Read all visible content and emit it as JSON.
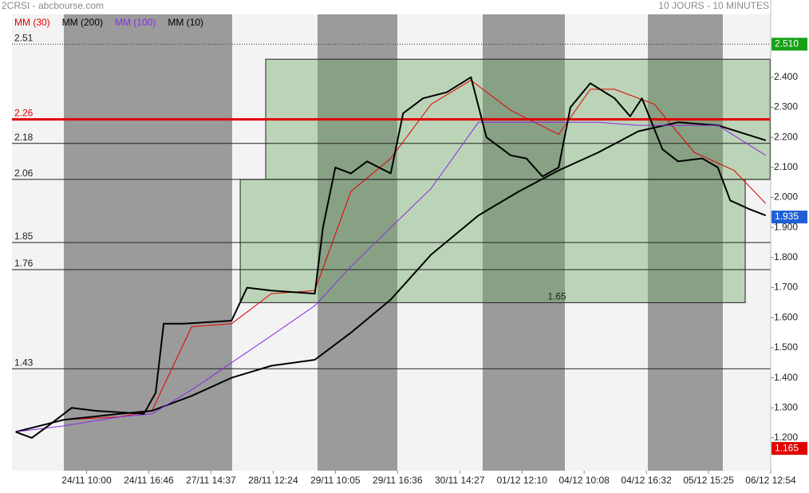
{
  "chart_data": {
    "type": "line",
    "title": "2CRSI - abcbourse.com",
    "subtitle": "10 JOURS - 10 MINUTES",
    "xlim": [
      -2,
      120
    ],
    "ylim": [
      1.091,
      2.657
    ],
    "xticks": [
      {
        "value": 10,
        "label": "24/11 10:00"
      },
      {
        "value": 20,
        "label": "24/11 16:46"
      },
      {
        "value": 30,
        "label": "27/11 14:37"
      },
      {
        "value": 40,
        "label": "28/11 12:24"
      },
      {
        "value": 50,
        "label": "29/11 10:05"
      },
      {
        "value": 60,
        "label": "29/11 16:36"
      },
      {
        "value": 70,
        "label": "30/11 14:27"
      },
      {
        "value": 80,
        "label": "01/12 12:10"
      },
      {
        "value": 90,
        "label": "04/12 10:08"
      },
      {
        "value": 100,
        "label": "04/12 16:32"
      },
      {
        "value": 110,
        "label": "05/12 15:25"
      },
      {
        "value": 120,
        "label": "06/12 12:54"
      }
    ],
    "yticks": [
      {
        "value": 1.2,
        "label": "1.200"
      },
      {
        "value": 1.3,
        "label": "1.300"
      },
      {
        "value": 1.4,
        "label": "1.400"
      },
      {
        "value": 1.5,
        "label": "1.500"
      },
      {
        "value": 1.6,
        "label": "1.600"
      },
      {
        "value": 1.7,
        "label": "1.700"
      },
      {
        "value": 1.8,
        "label": "1.800"
      },
      {
        "value": 1.9,
        "label": "1.900"
      },
      {
        "value": 2.0,
        "label": "2.000"
      },
      {
        "value": 2.1,
        "label": "2.100"
      },
      {
        "value": 2.2,
        "label": "2.200"
      },
      {
        "value": 2.3,
        "label": "2.300"
      },
      {
        "value": 2.4,
        "label": "2.400"
      }
    ],
    "zones": [
      {
        "xlim": [
          38.8,
          119.9
        ],
        "ylim": [
          2.06,
          2.46
        ]
      },
      {
        "xlim": [
          34.7,
          115.9
        ],
        "ylim": [
          1.65,
          2.06
        ]
      }
    ],
    "levels": [
      {
        "value": 2.51,
        "style": "dotted",
        "color": "#333333"
      },
      {
        "value": 2.26,
        "style": "thick",
        "color": "#e00000"
      },
      {
        "value": 2.18,
        "style": "solid",
        "color": "#222222"
      },
      {
        "value": 2.06,
        "style": "solid",
        "color": "#222222"
      },
      {
        "value": 1.85,
        "style": "solid",
        "color": "#222222"
      },
      {
        "value": 1.76,
        "style": "solid",
        "color": "#222222"
      },
      {
        "value": 1.65,
        "style": "zone",
        "color": "#222222"
      },
      {
        "value": 1.43,
        "style": "solid",
        "color": "#222222"
      }
    ],
    "price_markers": [
      {
        "value": 2.51,
        "label": "2.510",
        "color": "#16a016"
      },
      {
        "value": 1.935,
        "label": "1.935",
        "color": "#1f5fd6"
      },
      {
        "value": 1.165,
        "label": "1.165",
        "color": "#e00000"
      }
    ],
    "series": [
      {
        "name": "MM (30)",
        "color": "#e00000",
        "width": 1,
        "x": [
          -1.4,
          6.3,
          15.3,
          20.5,
          26.9,
          33.3,
          39.7,
          46.7,
          52.5,
          58.9,
          65.4,
          71.8,
          78.2,
          85.9,
          91.0,
          94.9,
          101.3,
          107.7,
          114.1,
          119.2
        ],
        "values": [
          1.22,
          1.26,
          1.27,
          1.29,
          1.57,
          1.58,
          1.68,
          1.69,
          2.02,
          2.13,
          2.31,
          2.39,
          2.29,
          2.21,
          2.36,
          2.36,
          2.31,
          2.15,
          2.09,
          1.98
        ]
      },
      {
        "name": "MM (200)",
        "color": "#000000",
        "width": 2,
        "x": [
          -1.4,
          6.3,
          15.3,
          20.5,
          26.9,
          33.3,
          39.7,
          46.7,
          52.5,
          58.9,
          65.4,
          73.0,
          79.5,
          85.9,
          92.3,
          98.7,
          105.1,
          111.5,
          119.2
        ],
        "values": [
          1.22,
          1.26,
          1.28,
          1.29,
          1.34,
          1.4,
          1.44,
          1.46,
          1.55,
          1.66,
          1.81,
          1.94,
          2.02,
          2.09,
          2.15,
          2.22,
          2.25,
          2.24,
          2.19
        ]
      },
      {
        "name": "MM (100)",
        "color": "#8a2be2",
        "width": 1,
        "x": [
          -1.4,
          6.3,
          15.3,
          20.5,
          26.9,
          33.3,
          39.7,
          46.7,
          52.5,
          58.9,
          65.4,
          73.0,
          79.5,
          85.9,
          92.3,
          98.7,
          105.1,
          111.5,
          119.2
        ],
        "values": [
          1.22,
          1.24,
          1.27,
          1.28,
          1.36,
          1.45,
          1.54,
          1.64,
          1.77,
          1.9,
          2.03,
          2.25,
          2.25,
          2.25,
          2.25,
          2.24,
          2.24,
          2.24,
          2.14
        ]
      },
      {
        "name": "MM (10)",
        "color": "#000000",
        "width": 2,
        "x": [
          -1.4,
          1.2,
          3.8,
          7.6,
          11.5,
          19.2,
          21.1,
          22.4,
          25.6,
          33.3,
          35.8,
          39.7,
          46.7,
          48.0,
          50.0,
          52.5,
          55.1,
          58.9,
          60.9,
          64.1,
          67.9,
          71.8,
          74.3,
          78.2,
          80.7,
          83.3,
          85.9,
          87.8,
          91.0,
          94.9,
          97.4,
          99.3,
          102.6,
          105.1,
          109.0,
          111.5,
          113.5,
          116.7,
          119.2
        ],
        "values": [
          1.22,
          1.2,
          1.24,
          1.3,
          1.29,
          1.28,
          1.35,
          1.58,
          1.58,
          1.59,
          1.7,
          1.69,
          1.68,
          1.9,
          2.1,
          2.08,
          2.12,
          2.08,
          2.28,
          2.33,
          2.35,
          2.4,
          2.2,
          2.14,
          2.13,
          2.07,
          2.1,
          2.3,
          2.38,
          2.33,
          2.27,
          2.33,
          2.16,
          2.12,
          2.13,
          2.1,
          1.99,
          1.96,
          1.94
        ]
      }
    ]
  }
}
